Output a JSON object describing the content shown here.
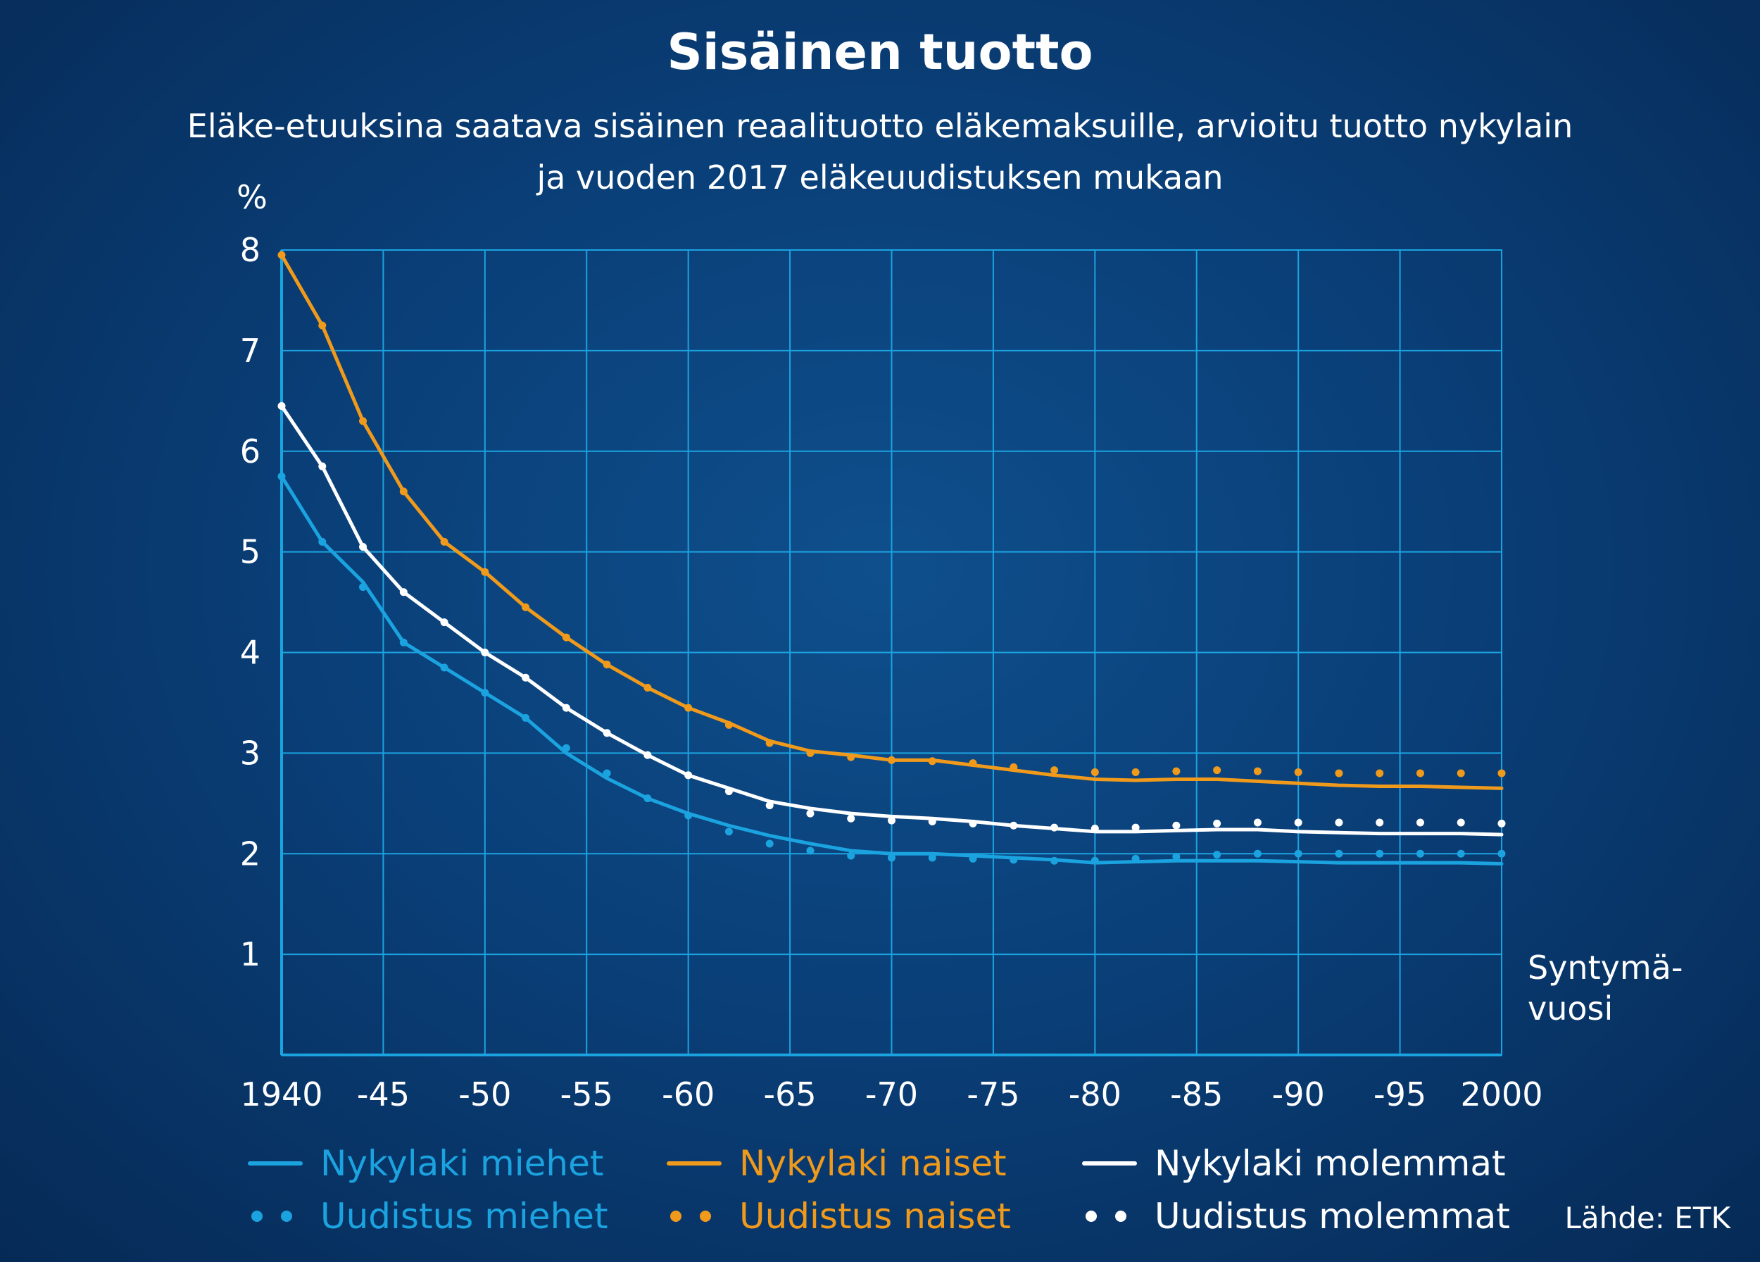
{
  "chart_data": {
    "type": "line",
    "title": "Sisäinen tuotto",
    "subtitle_lines": [
      "Eläke-etuuksina saatava sisäinen reaalituotto eläkemaksuille, arvioitu tuotto nykylain",
      "ja vuoden 2017 eläkeuudistuksen mukaan"
    ],
    "ylabel": "%",
    "xlabel_lines": [
      "Syntymä-",
      "vuosi"
    ],
    "xlim": [
      1940,
      2000
    ],
    "ylim": [
      0,
      8
    ],
    "grid": true,
    "x_ticks": [
      {
        "value": 1940,
        "label": "1940"
      },
      {
        "value": 1945,
        "label": "-45"
      },
      {
        "value": 1950,
        "label": "-50"
      },
      {
        "value": 1955,
        "label": "-55"
      },
      {
        "value": 1960,
        "label": "-60"
      },
      {
        "value": 1965,
        "label": "-65"
      },
      {
        "value": 1970,
        "label": "-70"
      },
      {
        "value": 1975,
        "label": "-75"
      },
      {
        "value": 1980,
        "label": "-80"
      },
      {
        "value": 1985,
        "label": "-85"
      },
      {
        "value": 1990,
        "label": "-90"
      },
      {
        "value": 1995,
        "label": "-95"
      },
      {
        "value": 2000,
        "label": "2000"
      }
    ],
    "y_ticks": [
      1,
      2,
      3,
      4,
      5,
      6,
      7,
      8
    ],
    "x": [
      1940,
      1942,
      1944,
      1946,
      1948,
      1950,
      1952,
      1954,
      1956,
      1958,
      1960,
      1962,
      1964,
      1966,
      1968,
      1970,
      1972,
      1974,
      1976,
      1978,
      1980,
      1982,
      1984,
      1986,
      1988,
      1990,
      1992,
      1994,
      1996,
      1998,
      2000
    ],
    "series": [
      {
        "name": "Nykylaki miehet",
        "style": "solid",
        "color": "#1ba3e0",
        "values": [
          5.75,
          5.1,
          4.7,
          4.1,
          3.85,
          3.6,
          3.35,
          3.0,
          2.75,
          2.55,
          2.4,
          2.28,
          2.18,
          2.1,
          2.03,
          2.0,
          2.0,
          1.98,
          1.96,
          1.94,
          1.91,
          1.92,
          1.93,
          1.93,
          1.93,
          1.92,
          1.91,
          1.91,
          1.91,
          1.91,
          1.9
        ]
      },
      {
        "name": "Nykylaki naiset",
        "style": "solid",
        "color": "#f09a1c",
        "values": [
          7.95,
          7.25,
          6.3,
          5.6,
          5.1,
          4.8,
          4.45,
          4.15,
          3.88,
          3.65,
          3.45,
          3.3,
          3.12,
          3.02,
          2.98,
          2.93,
          2.93,
          2.88,
          2.83,
          2.78,
          2.74,
          2.73,
          2.74,
          2.74,
          2.72,
          2.7,
          2.68,
          2.67,
          2.67,
          2.66,
          2.65
        ]
      },
      {
        "name": "Nykylaki molemmat",
        "style": "solid",
        "color": "#ffffff",
        "values": [
          6.45,
          5.85,
          5.05,
          4.6,
          4.3,
          4.0,
          3.75,
          3.45,
          3.2,
          2.98,
          2.78,
          2.65,
          2.52,
          2.45,
          2.4,
          2.37,
          2.35,
          2.32,
          2.28,
          2.25,
          2.22,
          2.22,
          2.23,
          2.24,
          2.24,
          2.22,
          2.21,
          2.2,
          2.2,
          2.2,
          2.19
        ]
      },
      {
        "name": "Uudistus miehet",
        "style": "dotted",
        "color": "#1ba3e0",
        "values": [
          5.75,
          5.1,
          4.65,
          4.1,
          3.85,
          3.6,
          3.35,
          3.05,
          2.8,
          2.55,
          2.38,
          2.22,
          2.1,
          2.03,
          1.98,
          1.96,
          1.96,
          1.95,
          1.94,
          1.93,
          1.93,
          1.95,
          1.97,
          1.99,
          2.0,
          2.0,
          2.0,
          2.0,
          2.0,
          2.0,
          2.0
        ]
      },
      {
        "name": "Uudistus naiset",
        "style": "dotted",
        "color": "#f09a1c",
        "values": [
          7.95,
          7.25,
          6.3,
          5.6,
          5.1,
          4.8,
          4.45,
          4.15,
          3.88,
          3.65,
          3.45,
          3.28,
          3.1,
          3.0,
          2.96,
          2.93,
          2.92,
          2.9,
          2.86,
          2.83,
          2.81,
          2.81,
          2.82,
          2.83,
          2.82,
          2.81,
          2.8,
          2.8,
          2.8,
          2.8,
          2.8
        ]
      },
      {
        "name": "Uudistus molemmat",
        "style": "dotted",
        "color": "#ffffff",
        "values": [
          6.45,
          5.85,
          5.05,
          4.6,
          4.3,
          4.0,
          3.75,
          3.45,
          3.2,
          2.98,
          2.78,
          2.62,
          2.48,
          2.4,
          2.35,
          2.33,
          2.32,
          2.3,
          2.28,
          2.26,
          2.25,
          2.26,
          2.28,
          2.3,
          2.31,
          2.31,
          2.31,
          2.31,
          2.31,
          2.31,
          2.3
        ]
      }
    ],
    "legend_position": "bottom",
    "legend": [
      {
        "label": "Nykylaki miehet",
        "style": "solid",
        "color": "#1ba3e0"
      },
      {
        "label": "Nykylaki naiset",
        "style": "solid",
        "color": "#f09a1c"
      },
      {
        "label": "Nykylaki molemmat",
        "style": "solid",
        "color": "#ffffff"
      },
      {
        "label": "Uudistus miehet",
        "style": "dotted",
        "color": "#1ba3e0"
      },
      {
        "label": "Uudistus naiset",
        "style": "dotted",
        "color": "#f09a1c"
      },
      {
        "label": "Uudistus molemmat",
        "style": "dotted",
        "color": "#ffffff"
      }
    ],
    "source": "Lähde: ETK",
    "colors": {
      "grid": "#1ba3e0",
      "axis": "#1ba3e0"
    }
  }
}
